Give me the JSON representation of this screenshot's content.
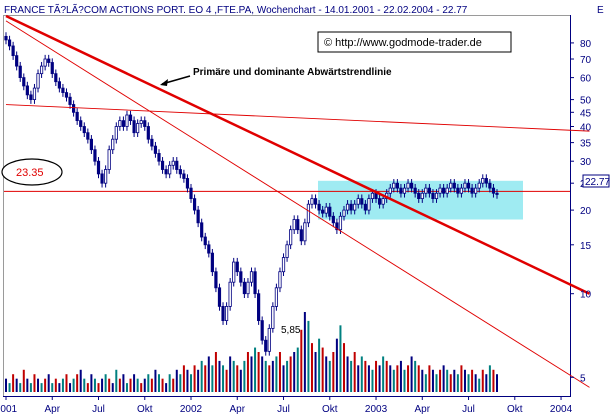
{
  "header": {
    "title": "FRANCE TÃ?LÃ?COM ACTIONS PORT. EO 4 ,FTE.PA, Wochenchart - 14.01.2001 - 22.02.2004 - 22.77",
    "watermark": "© http://www.godmode-trader.de",
    "corner_label": "E"
  },
  "colors": {
    "background": "#ffffff",
    "frame": "#9a9a9a",
    "axis_text": "#000080",
    "candle": "#000080",
    "trendline": "#e00000",
    "highlight_box": "#8ee8f0",
    "volume_bars": [
      "#000080",
      "#008080",
      "#c00000"
    ]
  },
  "chart_data": {
    "type": "candlestick",
    "title": "FRANCE TÃ?LÃ?COM ACTIONS PORT. EO 4 ,FTE.PA, Wochenchart - 14.01.2001 - 22.02.2004 - 22.77",
    "y_scale": "log",
    "ylim": [
      4.5,
      100
    ],
    "y_ticks": [
      5,
      10,
      15,
      20,
      25,
      30,
      35,
      40,
      45,
      50,
      60,
      70,
      80
    ],
    "y_tick_labels": [
      "5",
      "10",
      "15",
      "20",
      "25",
      "30",
      "35",
      "40",
      "45",
      "50",
      "60",
      "70",
      "80"
    ],
    "x_tick_labels": [
      "2001",
      "Apr",
      "Jul",
      "Okt",
      "2002",
      "Apr",
      "Jul",
      "Okt",
      "2003",
      "Apr",
      "Jul",
      "Okt",
      "2004"
    ],
    "last_price_label": "22.77",
    "last_price": 22.77,
    "weekly_close": [
      82,
      78,
      72,
      66,
      60,
      56,
      52,
      50,
      55,
      62,
      66,
      70,
      68,
      62,
      58,
      55,
      53,
      51,
      48,
      45,
      42,
      40,
      38,
      36,
      33,
      30,
      27,
      25,
      28,
      33,
      36,
      40,
      42,
      40,
      44,
      42,
      38,
      41,
      42,
      40,
      36,
      34,
      32,
      30,
      28,
      27,
      29,
      30,
      28,
      27,
      26,
      24,
      22,
      20,
      18,
      16,
      15,
      14,
      12,
      10.5,
      9,
      8,
      9,
      11,
      13,
      12,
      11,
      10,
      11,
      12,
      10,
      8,
      6.8,
      6.2,
      7.5,
      9,
      10.5,
      12,
      13.5,
      15,
      17,
      18.5,
      17,
      15.5,
      18,
      21,
      22,
      21,
      20,
      19.5,
      20.5,
      19,
      18,
      17,
      19,
      20,
      21,
      20,
      21,
      22,
      21,
      20,
      22,
      23,
      22,
      21,
      22,
      23,
      24,
      25,
      24,
      23,
      24,
      25,
      24,
      23,
      22,
      23,
      24,
      23,
      22,
      23,
      24,
      23,
      24,
      25,
      24,
      23,
      24,
      25,
      24,
      23,
      24,
      25,
      26,
      25,
      24,
      23,
      22.77
    ],
    "weekly_volume": [
      3,
      2,
      4,
      3,
      2,
      5,
      3,
      2,
      4,
      3,
      2,
      3,
      4,
      2,
      3,
      2,
      3,
      4,
      2,
      3,
      4,
      5,
      3,
      2,
      4,
      3,
      2,
      3,
      4,
      3,
      2,
      5,
      3,
      4,
      2,
      3,
      4,
      3,
      2,
      3,
      4,
      3,
      5,
      4,
      3,
      2,
      4,
      3,
      5,
      4,
      6,
      5,
      4,
      6,
      5,
      7,
      6,
      8,
      6,
      9,
      7,
      6,
      5,
      8,
      7,
      6,
      5,
      7,
      9,
      8,
      10,
      9,
      8,
      7,
      6,
      7,
      8,
      9,
      6,
      7,
      8,
      9,
      10,
      14,
      18,
      16,
      11,
      9,
      12,
      10,
      8,
      7,
      9,
      12,
      15,
      11,
      8,
      7,
      9,
      6,
      8,
      7,
      6,
      5,
      7,
      6,
      8,
      7,
      6,
      5,
      6,
      7,
      5,
      6,
      8,
      7,
      6,
      5,
      4,
      6,
      5,
      4,
      5,
      6,
      5,
      4,
      5,
      4,
      6,
      5,
      4,
      5,
      4,
      3,
      5,
      4,
      6,
      5,
      4
    ],
    "horizontal_line": {
      "value": 23.35,
      "label": "23.35"
    },
    "low_annotation": {
      "value": 6.2,
      "label": "5,85"
    },
    "trendline_annotation": "Primäre und dominante  Abwärtstrendlinie",
    "highlight_zone": {
      "from_label": "Okt 2002",
      "to_label": "2004",
      "low": 18.5,
      "high": 25.5
    },
    "trendlines": [
      {
        "name": "",
        "thick": true,
        "from": {
          "week": 0,
          "value": 100
        },
        "to": {
          "week": 164,
          "value": 10
        }
      },
      {
        "name": "",
        "thick": false,
        "from": {
          "week": 0,
          "value": 96
        },
        "to": {
          "week": 164,
          "value": 4.6
        }
      },
      {
        "name": "",
        "thick": false,
        "from": {
          "week": 0,
          "value": 48
        },
        "to": {
          "week": 164,
          "value": 38.5
        }
      }
    ]
  }
}
